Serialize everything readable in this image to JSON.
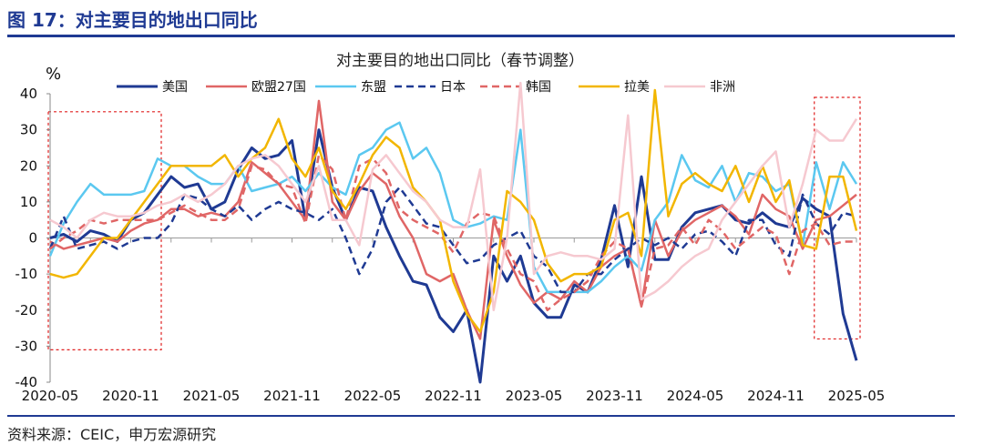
{
  "header": {
    "figure_title": "图 17：对主要目的地出口同比"
  },
  "footer": {
    "source": "资料来源：CEIC，申万宏源研究"
  },
  "chart_data": {
    "type": "line",
    "title": "对主要目的地出口同比（春节调整）",
    "ylabel": "%",
    "xlabel": "",
    "ylim": [
      -40,
      40
    ],
    "yticks": [
      "40",
      "30",
      "20",
      "10",
      "0",
      "-10",
      "-20",
      "-30",
      "-40"
    ],
    "xtick_labels": [
      "2020-05",
      "2020-11",
      "2021-05",
      "2021-11",
      "2022-05",
      "2022-11",
      "2023-05",
      "2023-11",
      "2024-05",
      "2024-11",
      "2025-05"
    ],
    "x": [
      "2020-05",
      "2020-06",
      "2020-07",
      "2020-08",
      "2020-09",
      "2020-10",
      "2020-11",
      "2020-12",
      "2021-01",
      "2021-02",
      "2021-03",
      "2021-04",
      "2021-05",
      "2021-06",
      "2021-07",
      "2021-08",
      "2021-09",
      "2021-10",
      "2021-11",
      "2021-12",
      "2022-01",
      "2022-02",
      "2022-03",
      "2022-04",
      "2022-05",
      "2022-06",
      "2022-07",
      "2022-08",
      "2022-09",
      "2022-10",
      "2022-11",
      "2022-12",
      "2023-01",
      "2023-02",
      "2023-03",
      "2023-04",
      "2023-05",
      "2023-06",
      "2023-07",
      "2023-08",
      "2023-09",
      "2023-10",
      "2023-11",
      "2023-12",
      "2024-01",
      "2024-02",
      "2024-03",
      "2024-04",
      "2024-05",
      "2024-06",
      "2024-07",
      "2024-08",
      "2024-09",
      "2024-10",
      "2024-11",
      "2024-12",
      "2025-01",
      "2025-02",
      "2025-03",
      "2025-04",
      "2025-05"
    ],
    "legend_position": "top",
    "highlight_boxes": [
      {
        "from": "2020-05",
        "to": "2021-01",
        "y_top": 35,
        "y_bottom": -31,
        "color": "#e02020"
      },
      {
        "from": "2025-02",
        "to": "2025-05",
        "y_top": 39,
        "y_bottom": -28,
        "color": "#e02020"
      }
    ],
    "series": [
      {
        "name": "美国",
        "color": "#1f3a93",
        "dash": "solid",
        "width": 3,
        "values": [
          0,
          1,
          -1,
          2,
          1,
          -1,
          5,
          7,
          12,
          17,
          14,
          15,
          8,
          10,
          19,
          25,
          22,
          23,
          27,
          5,
          30,
          14,
          5,
          14,
          13,
          3,
          -5,
          -12,
          -13,
          -22,
          -26,
          -20,
          -40,
          -5,
          -12,
          -5,
          -18,
          -22,
          -22,
          -13,
          -15,
          -6,
          9,
          -8,
          17,
          -6,
          -6,
          3,
          7,
          8,
          9,
          5,
          4,
          7,
          4,
          3,
          11,
          8,
          6,
          -21,
          -34
        ]
      },
      {
        "name": "欧盟27国",
        "color": "#e06666",
        "dash": "solid",
        "width": 2.5,
        "values": [
          -1,
          -3,
          -2,
          -1,
          0,
          -1,
          2,
          4,
          5,
          8,
          8,
          6,
          7,
          6,
          10,
          21,
          18,
          15,
          10,
          5,
          38,
          10,
          5,
          13,
          18,
          15,
          6,
          0,
          -10,
          -12,
          -10,
          -20,
          -28,
          5,
          -5,
          -13,
          -18,
          -15,
          -17,
          -12,
          -15,
          -8,
          -5,
          -3,
          -19,
          5,
          -5,
          2,
          5,
          7,
          9,
          6,
          1,
          12,
          8,
          6,
          -3,
          5,
          6,
          9,
          12
        ]
      },
      {
        "name": "东盟",
        "color": "#5bc8f0",
        "dash": "solid",
        "width": 2.5,
        "values": [
          -5,
          4,
          10,
          15,
          12,
          12,
          12,
          13,
          22,
          20,
          20,
          17,
          15,
          15,
          20,
          13,
          14,
          15,
          17,
          13,
          18,
          14,
          12,
          23,
          25,
          30,
          32,
          22,
          25,
          18,
          5,
          3,
          4,
          6,
          5,
          30,
          -8,
          -15,
          -15,
          -15,
          -15,
          -12,
          -8,
          -5,
          -9,
          5,
          10,
          23,
          16,
          14,
          20,
          10,
          18,
          17,
          13,
          15,
          -2,
          21,
          8,
          21,
          15
        ]
      },
      {
        "name": "日本",
        "color": "#1f3a93",
        "dash": "dashed",
        "width": 2.5,
        "values": [
          -3,
          6,
          -3,
          -2,
          -1,
          -3,
          -1,
          0,
          0,
          4,
          12,
          11,
          8,
          6,
          9,
          5,
          8,
          10,
          8,
          7,
          5,
          8,
          0,
          -10,
          -3,
          10,
          14,
          9,
          4,
          3,
          -2,
          -7,
          -6,
          -2,
          0,
          2,
          -5,
          -8,
          -15,
          -15,
          -10,
          -10,
          -6,
          -3,
          0,
          -2,
          0,
          -3,
          1,
          2,
          -1,
          -5,
          5,
          5,
          -2,
          -5,
          12,
          4,
          1,
          7,
          6
        ]
      },
      {
        "name": "韩国",
        "color": "#e06666",
        "dash": "dashed",
        "width": 2.5,
        "values": [
          -3,
          0,
          2,
          5,
          4,
          5,
          5,
          5,
          5,
          7,
          9,
          7,
          5,
          5,
          8,
          20,
          19,
          15,
          14,
          4,
          23,
          19,
          5,
          20,
          22,
          18,
          8,
          5,
          3,
          1,
          -4,
          4,
          7,
          6,
          -3,
          -10,
          -12,
          -20,
          -17,
          -15,
          -12,
          -5,
          -1,
          -3,
          -19,
          -3,
          -2,
          3,
          -2,
          5,
          2,
          -3,
          0,
          3,
          1,
          -10,
          2,
          4,
          -2,
          -1,
          -1
        ]
      },
      {
        "name": "拉美",
        "color": "#f2b600",
        "dash": "solid",
        "width": 2.5,
        "values": [
          -10,
          -11,
          -10,
          -5,
          0,
          0,
          5,
          10,
          15,
          20,
          20,
          20,
          20,
          23,
          17,
          22,
          25,
          33,
          22,
          17,
          25,
          13,
          8,
          15,
          23,
          28,
          25,
          14,
          10,
          5,
          -12,
          -21,
          -26,
          -15,
          13,
          10,
          5,
          -7,
          -12,
          -10,
          -10,
          -8,
          5,
          7,
          -5,
          41,
          6,
          15,
          18,
          15,
          13,
          20,
          10,
          20,
          10,
          16,
          -2,
          -3,
          17,
          17,
          2
        ]
      },
      {
        "name": "非洲",
        "color": "#f6c9d0",
        "dash": "solid",
        "width": 2.5,
        "values": [
          5,
          3,
          0,
          5,
          7,
          6,
          6,
          7,
          9,
          10,
          12,
          10,
          12,
          15,
          20,
          22,
          23,
          20,
          15,
          10,
          20,
          5,
          5,
          -2,
          19,
          23,
          18,
          13,
          10,
          5,
          3,
          3,
          19,
          -20,
          0,
          45,
          -10,
          -5,
          -4,
          -5,
          -5,
          -6,
          -3,
          34,
          -17,
          -15,
          -12,
          -8,
          -5,
          -3,
          5,
          10,
          15,
          20,
          24,
          3,
          15,
          30,
          27,
          27,
          33
        ]
      }
    ]
  }
}
